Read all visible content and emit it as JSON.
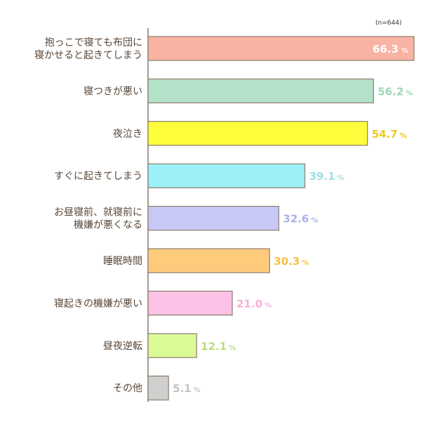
{
  "chart_data": {
    "type": "bar",
    "orientation": "horizontal",
    "note": "(n=644)",
    "unit": "%",
    "categories": [
      [
        "抱っこで寝ても布団に",
        "寝かせると起きてしまう"
      ],
      [
        "寝つきが悪い"
      ],
      [
        "夜泣き"
      ],
      [
        "すぐに起きてしまう"
      ],
      [
        "お昼寝前、就寝前に",
        "機嫌が悪くなる"
      ],
      [
        "睡眠時間"
      ],
      [
        "寝起きの機嫌が悪い"
      ],
      [
        "昼夜逆転"
      ],
      [
        "その他"
      ]
    ],
    "values": [
      66.3,
      56.2,
      54.7,
      39.1,
      32.6,
      30.3,
      21.0,
      12.1,
      5.1
    ],
    "value_labels": [
      "66.3",
      "56.2",
      "54.7",
      "39.1",
      "32.6",
      "30.3",
      "21.0",
      "12.1",
      "5.1"
    ],
    "colors": [
      "#f9b3a3",
      "#b4e2c8",
      "#fdfd3c",
      "#9cf0f8",
      "#c8c8f7",
      "#fecb7d",
      "#fbc2e5",
      "#dafa98",
      "#cfcfcf"
    ],
    "label_colors": [
      "#ffffff",
      "#9ed7b8",
      "#f0c81e",
      "#9ddfe6",
      "#b0b0ea",
      "#f5c242",
      "#f7b0d6",
      "#b8de7a",
      "#c4c4c4"
    ],
    "xlim": [
      0,
      66.3
    ],
    "grid": false
  }
}
